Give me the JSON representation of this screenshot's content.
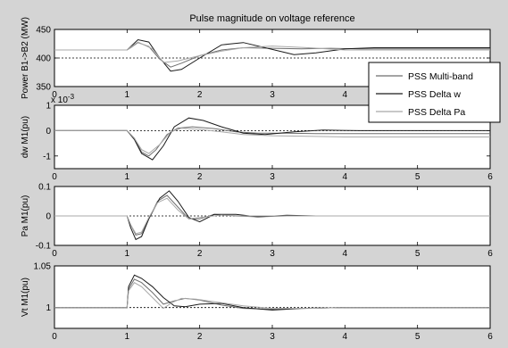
{
  "figure_title": "Pulse magnitude on voltage reference",
  "legend": {
    "placement": "right, spanning top two panels",
    "entries": [
      {
        "label": "PSS Multi-band",
        "color": "#6e6e6e"
      },
      {
        "label": "PSS Delta w",
        "color": "#1a1a1a"
      },
      {
        "label": "PSS Delta Pa",
        "color": "#a8a8a8"
      }
    ]
  },
  "chart_data": [
    {
      "type": "line",
      "title": "Pulse magnitude on voltage reference",
      "ylabel": "Power B1->B2 (MW)",
      "xlim": [
        0,
        6
      ],
      "ylim": [
        350,
        450
      ],
      "xticks": [
        0,
        1,
        2,
        3,
        4,
        5,
        6
      ],
      "yticks": [
        350,
        400,
        450
      ],
      "ref_line": 400,
      "series": [
        {
          "name": "PSS Multi-band",
          "x": [
            0,
            1,
            1.05,
            1.15,
            1.3,
            1.45,
            1.6,
            1.75,
            2,
            2.3,
            2.6,
            3,
            3.4,
            3.8,
            4.2,
            6
          ],
          "y": [
            414,
            414,
            418,
            427,
            420,
            398,
            384,
            391,
            404,
            414,
            418,
            417,
            416,
            417,
            416,
            416
          ]
        },
        {
          "name": "PSS Delta w",
          "x": [
            0,
            1,
            1.05,
            1.15,
            1.3,
            1.45,
            1.6,
            1.75,
            2,
            2.3,
            2.6,
            3,
            3.3,
            3.6,
            4,
            4.4,
            6
          ],
          "y": [
            414,
            414,
            420,
            432,
            428,
            400,
            377,
            380,
            400,
            423,
            427,
            415,
            406,
            409,
            416,
            418,
            418
          ]
        },
        {
          "name": "PSS Delta Pa",
          "x": [
            0,
            1,
            1.05,
            1.15,
            1.35,
            1.5,
            1.7,
            2,
            2.3,
            2.6,
            3,
            3.5,
            4,
            6
          ],
          "y": [
            414,
            414,
            419,
            428,
            416,
            392,
            395,
            404,
            412,
            418,
            421,
            418,
            414,
            414
          ]
        }
      ]
    },
    {
      "type": "line",
      "ylabel": "dw M1(pu)",
      "y_exponent": "x 10-3",
      "xlim": [
        0,
        6
      ],
      "ylim": [
        -1.5,
        1
      ],
      "xticks": [
        0,
        1,
        2,
        3,
        4,
        5,
        6
      ],
      "yticks": [
        -1,
        0,
        1
      ],
      "ref_line": 0,
      "series": [
        {
          "name": "PSS Multi-band",
          "x": [
            0,
            1,
            1.1,
            1.2,
            1.3,
            1.4,
            1.55,
            1.7,
            1.9,
            2.2,
            2.5,
            2.8,
            3.2,
            3.6,
            4,
            6
          ],
          "y": [
            0,
            0,
            -0.3,
            -0.85,
            -1.0,
            -0.75,
            -0.15,
            0.1,
            0.15,
            0.08,
            -0.05,
            -0.1,
            -0.1,
            -0.12,
            -0.12,
            -0.12
          ]
        },
        {
          "name": "PSS Delta w",
          "x": [
            0,
            1,
            1.1,
            1.2,
            1.35,
            1.5,
            1.65,
            1.85,
            2.05,
            2.3,
            2.6,
            2.9,
            3.3,
            3.7,
            4.2,
            6
          ],
          "y": [
            0,
            0,
            -0.35,
            -0.9,
            -1.15,
            -0.6,
            0.15,
            0.5,
            0.4,
            0.15,
            -0.1,
            -0.15,
            -0.05,
            0.02,
            0,
            0
          ]
        },
        {
          "name": "PSS Delta Pa",
          "x": [
            0,
            1,
            1.1,
            1.2,
            1.3,
            1.45,
            1.6,
            1.75,
            2,
            2.3,
            2.6,
            3,
            3.4,
            4,
            6
          ],
          "y": [
            0,
            0,
            -0.3,
            -0.75,
            -0.9,
            -0.55,
            -0.05,
            0.1,
            0.05,
            -0.05,
            -0.15,
            -0.2,
            -0.22,
            -0.25,
            -0.25
          ]
        }
      ]
    },
    {
      "type": "line",
      "ylabel": "Pa M1(pu)",
      "xlim": [
        0,
        6
      ],
      "ylim": [
        -0.1,
        0.1
      ],
      "xticks": [
        0,
        1,
        2,
        3,
        4,
        5,
        6
      ],
      "yticks": [
        -0.1,
        0,
        0.1
      ],
      "ref_line": 0,
      "series": [
        {
          "name": "PSS Multi-band",
          "x": [
            0,
            1,
            1.05,
            1.12,
            1.2,
            1.3,
            1.42,
            1.55,
            1.7,
            1.85,
            2,
            2.2,
            2.5,
            2.8,
            3.2,
            6
          ],
          "y": [
            0,
            0,
            -0.03,
            -0.065,
            -0.06,
            -0.01,
            0.05,
            0.07,
            0.03,
            -0.01,
            -0.01,
            0.005,
            0,
            -0.003,
            0,
            0
          ]
        },
        {
          "name": "PSS Delta w",
          "x": [
            0,
            1,
            1.05,
            1.12,
            1.2,
            1.3,
            1.45,
            1.58,
            1.7,
            1.85,
            2,
            2.2,
            2.5,
            2.8,
            3.2,
            3.6,
            4,
            6
          ],
          "y": [
            0,
            0,
            -0.04,
            -0.08,
            -0.07,
            -0.01,
            0.06,
            0.085,
            0.05,
            -0.005,
            -0.02,
            0.005,
            0.005,
            -0.003,
            0.002,
            0,
            0,
            0
          ]
        },
        {
          "name": "PSS Delta Pa",
          "x": [
            0,
            1,
            1.05,
            1.12,
            1.2,
            1.3,
            1.42,
            1.55,
            1.7,
            1.85,
            2,
            2.3,
            2.6,
            3,
            6
          ],
          "y": [
            0,
            0,
            -0.03,
            -0.06,
            -0.055,
            -0.005,
            0.045,
            0.06,
            0.02,
            -0.01,
            -0.005,
            0.003,
            0,
            0,
            0
          ]
        }
      ]
    },
    {
      "type": "line",
      "ylabel": "Vt M1(pu)",
      "xlim": [
        0,
        6
      ],
      "ylim": [
        0.975,
        1.05
      ],
      "xticks": [
        0,
        1,
        2,
        3,
        4,
        5,
        6
      ],
      "yticks": [
        1,
        1.05
      ],
      "ref_line": 1,
      "series": [
        {
          "name": "PSS Multi-band",
          "x": [
            0,
            1,
            1.02,
            1.1,
            1.2,
            1.35,
            1.5,
            1.65,
            1.8,
            2,
            2.3,
            2.6,
            3,
            3.4,
            4,
            6
          ],
          "y": [
            1,
            1,
            1.022,
            1.034,
            1.03,
            1.018,
            1.004,
            1.008,
            1.011,
            1.009,
            1.003,
            0.999,
            0.998,
            0.999,
            1,
            1
          ]
        },
        {
          "name": "PSS Delta w",
          "x": [
            0,
            1,
            1.02,
            1.1,
            1.2,
            1.35,
            1.5,
            1.65,
            1.8,
            2,
            2.3,
            2.6,
            3,
            3.4,
            4,
            6
          ],
          "y": [
            1,
            1,
            1.025,
            1.039,
            1.035,
            1.025,
            1.012,
            1.002,
            1.001,
            1.004,
            1.005,
            1.0,
            0.997,
            0.999,
            1.0,
            1.0
          ]
        },
        {
          "name": "PSS Delta Pa",
          "x": [
            0,
            1,
            1.02,
            1.1,
            1.2,
            1.35,
            1.5,
            1.62,
            1.75,
            1.95,
            2.2,
            2.6,
            3,
            3.5,
            4,
            6
          ],
          "y": [
            1,
            1,
            1.02,
            1.03,
            1.025,
            1.012,
            0.999,
            1.006,
            1.011,
            1.01,
            1.007,
            1.002,
            0.999,
            0.999,
            1,
            1
          ]
        }
      ]
    }
  ]
}
